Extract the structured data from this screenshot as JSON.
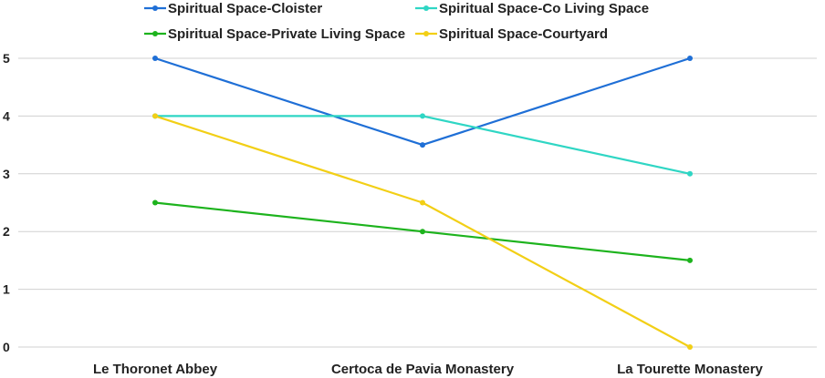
{
  "chart_data": {
    "type": "line",
    "categories": [
      "Le Thoronet Abbey",
      "Certoca de Pavia Monastery",
      "La Tourette Monastery"
    ],
    "series": [
      {
        "name": "Spiritual Space-Cloister",
        "values": [
          5,
          3.5,
          5
        ],
        "color": "#1f6fd6"
      },
      {
        "name": "Spiritual Space-Co Living Space",
        "values": [
          4,
          4,
          3
        ],
        "color": "#2fd6c4"
      },
      {
        "name": "Spiritual Space-Private Living Space",
        "values": [
          2.5,
          2,
          1.5
        ],
        "color": "#1db31d"
      },
      {
        "name": "Spiritual Space-Courtyard",
        "values": [
          4,
          2.5,
          0
        ],
        "color": "#f2cf16"
      }
    ],
    "yticks": [
      0,
      1,
      2,
      3,
      4,
      5
    ],
    "ylim": [
      0,
      5
    ],
    "grid": true,
    "gridColor": "#d0d0d0",
    "legend_position": "top"
  }
}
